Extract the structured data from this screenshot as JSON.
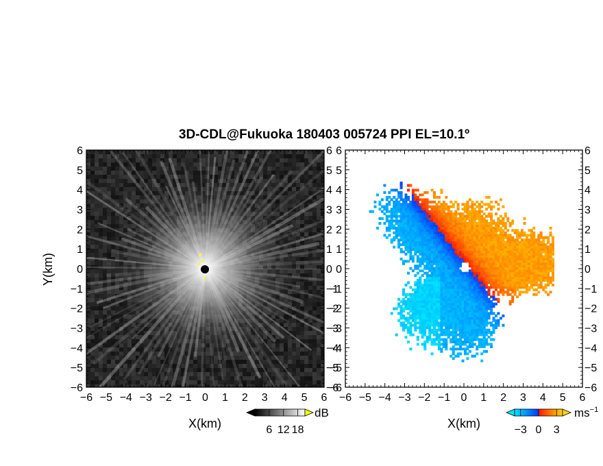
{
  "title": "3D-CDL@Fukuoka 180403 005724 PPI EL=10.1º",
  "chart_data": [
    {
      "type": "heatmap",
      "panel": "left",
      "description_of_field": "signal intensity",
      "xlabel": "X(km)",
      "ylabel": "Y(km)",
      "xlim": [
        -6,
        6
      ],
      "ylim": [
        -6,
        6
      ],
      "xticks": [
        "−6",
        "−5",
        "−4",
        "−3",
        "−2",
        "−1",
        "0",
        "1",
        "2",
        "3",
        "4",
        "5",
        "6"
      ],
      "yticks": [
        "6",
        "5",
        "4",
        "3",
        "2",
        "1",
        "0",
        "−1",
        "−2",
        "−3",
        "−4",
        "−5",
        "−6"
      ],
      "grid": false,
      "colorbar": {
        "unit": "dB",
        "ticks": [
          "6",
          "12",
          "18"
        ],
        "tick_values": [
          6,
          12,
          18
        ],
        "range": [
          0,
          21
        ],
        "colors": [
          "#000000",
          "#ffffff"
        ],
        "over_color": "#ffff00"
      }
    },
    {
      "type": "heatmap",
      "panel": "right",
      "xlabel": "X(km)",
      "ylabel": "",
      "xlim": [
        -6,
        6
      ],
      "ylim": [
        -6,
        6
      ],
      "xticks": [
        "−6",
        "−5",
        "−4",
        "−3",
        "−2",
        "−1",
        "0",
        "1",
        "2",
        "3",
        "4",
        "5",
        "6"
      ],
      "yticks": [
        "6",
        "5",
        "4",
        "3",
        "2",
        "1",
        "0",
        "−1",
        "−2",
        "−3",
        "−4",
        "−5",
        "−6"
      ],
      "grid": false,
      "colorbar": {
        "unit": "ms",
        "unit_exponent": "−1",
        "ticks": [
          "−3",
          "0",
          "3"
        ],
        "tick_values": [
          -3,
          0,
          3
        ],
        "range": [
          -4,
          4
        ],
        "colors": [
          "#00e5ff",
          "#0040ff",
          "#ff2000",
          "#ffd700"
        ]
      }
    }
  ]
}
